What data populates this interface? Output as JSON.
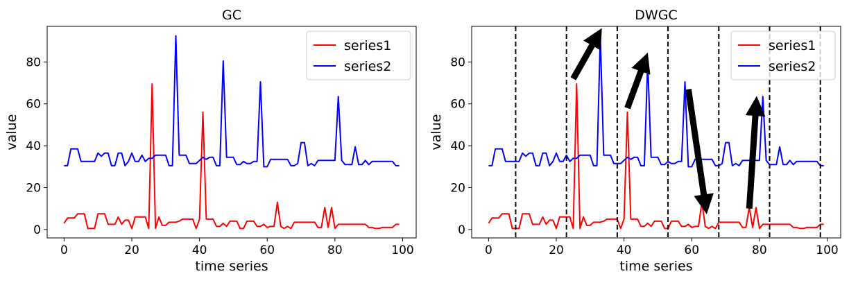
{
  "chart_data": [
    {
      "type": "line",
      "title": "GC",
      "xlabel": "time series",
      "ylabel": "value",
      "xlim": [
        -5,
        104
      ],
      "ylim": [
        -4,
        97
      ],
      "xticks": [
        0,
        20,
        40,
        60,
        80,
        100
      ],
      "yticks": [
        0,
        20,
        40,
        60,
        80
      ],
      "legend": "top-right",
      "series": [
        {
          "name": "series1",
          "color": "#ff0000",
          "x": [
            0,
            1,
            2,
            3,
            4,
            5,
            6,
            7,
            8,
            9,
            10,
            11,
            12,
            13,
            14,
            15,
            16,
            17,
            18,
            19,
            20,
            21,
            22,
            23,
            24,
            25,
            26,
            27,
            28,
            29,
            30,
            31,
            32,
            33,
            34,
            35,
            36,
            37,
            38,
            39,
            40,
            41,
            42,
            43,
            44,
            45,
            46,
            47,
            48,
            49,
            50,
            51,
            52,
            53,
            54,
            55,
            56,
            57,
            58,
            59,
            60,
            61,
            62,
            63,
            64,
            65,
            66,
            67,
            68,
            69,
            70,
            71,
            72,
            73,
            74,
            75,
            76,
            77,
            78,
            79,
            80,
            81,
            82,
            83,
            84,
            85,
            86,
            87,
            88,
            89,
            90,
            91,
            92,
            93,
            94,
            95,
            96,
            97,
            98,
            99
          ],
          "values": [
            3,
            5.5,
            5.5,
            5.5,
            7.5,
            7.5,
            7.5,
            0.5,
            0.5,
            0.5,
            7.5,
            7.5,
            7.5,
            2.5,
            2.5,
            2.5,
            6,
            2.5,
            4.5,
            4.5,
            0.5,
            6,
            6,
            6,
            6,
            0.5,
            69.5,
            0.5,
            6,
            2,
            2,
            3.5,
            3.5,
            3.5,
            4,
            5,
            5,
            5,
            5,
            0.5,
            5,
            56,
            5,
            5,
            5,
            1.5,
            1.5,
            3,
            1.5,
            4,
            4,
            4,
            0.5,
            0.5,
            4,
            4,
            4,
            1.5,
            1.5,
            2.5,
            1,
            1.5,
            1.5,
            13,
            1.5,
            0.5,
            1.5,
            0.5,
            3.5,
            3.5,
            3.5,
            3.5,
            3.5,
            3.5,
            3.5,
            1,
            1,
            10.5,
            1,
            10.5,
            0.5,
            2.5,
            2.5,
            2.5,
            2.5,
            2.5,
            2.5,
            2.5,
            2.5,
            2.5,
            1,
            1,
            0.5,
            0.5,
            1,
            1,
            1,
            1,
            2.5,
            2.5
          ]
        },
        {
          "name": "series2",
          "color": "#0000ff",
          "x": [
            0,
            1,
            2,
            3,
            4,
            5,
            6,
            7,
            8,
            9,
            10,
            11,
            12,
            13,
            14,
            15,
            16,
            17,
            18,
            19,
            20,
            21,
            22,
            23,
            24,
            25,
            26,
            27,
            28,
            29,
            30,
            31,
            32,
            33,
            34,
            35,
            36,
            37,
            38,
            39,
            40,
            41,
            42,
            43,
            44,
            45,
            46,
            47,
            48,
            49,
            50,
            51,
            52,
            53,
            54,
            55,
            56,
            57,
            58,
            59,
            60,
            61,
            62,
            63,
            64,
            65,
            66,
            67,
            68,
            69,
            70,
            71,
            72,
            73,
            74,
            75,
            76,
            77,
            78,
            79,
            80,
            81,
            82,
            83,
            84,
            85,
            86,
            87,
            88,
            89,
            90,
            91,
            92,
            93,
            94,
            95,
            96,
            97,
            98,
            99
          ],
          "values": [
            30.5,
            30.5,
            38.5,
            38.5,
            38.5,
            32.5,
            32.5,
            32.5,
            32.5,
            32.5,
            36.5,
            35,
            36.5,
            36.5,
            30.5,
            30.5,
            36.5,
            36.5,
            30.5,
            32.5,
            36.5,
            32.5,
            32.5,
            35.5,
            32.5,
            34,
            34,
            35.5,
            35.5,
            35.5,
            35.5,
            30.5,
            30.5,
            92.5,
            35.5,
            35.5,
            35.5,
            31.5,
            31.5,
            31.5,
            33,
            34.5,
            33.5,
            34.5,
            34.5,
            30.5,
            30.5,
            80.5,
            34.5,
            34.5,
            34.5,
            31,
            31,
            32.5,
            31.5,
            31.5,
            32.5,
            32.5,
            70.5,
            30,
            30,
            33.5,
            33.5,
            33.5,
            33.5,
            33.5,
            33.5,
            30.5,
            30.5,
            31.5,
            41.5,
            41.5,
            30.5,
            31.5,
            30.5,
            33,
            33,
            33,
            33,
            33,
            33,
            63.5,
            33,
            31,
            31,
            31,
            39.5,
            31,
            31,
            33,
            31,
            32.5,
            32.5,
            32.5,
            32.5,
            32.5,
            32.5,
            32.5,
            30.5,
            30.5
          ]
        }
      ]
    },
    {
      "type": "line",
      "title": "DWGC",
      "xlabel": "time series",
      "ylabel": "value",
      "xlim": [
        -5,
        104
      ],
      "ylim": [
        -4,
        97
      ],
      "xticks": [
        0,
        20,
        40,
        60,
        80,
        100
      ],
      "yticks": [
        0,
        20,
        40,
        60,
        80
      ],
      "legend": "top-right",
      "vertical_dashed_lines_x": [
        8,
        23,
        38,
        53,
        68,
        83,
        98
      ],
      "arrows": [
        {
          "from": [
            25,
            72
          ],
          "to": [
            32,
            92
          ]
        },
        {
          "from": [
            41,
            58
          ],
          "to": [
            46,
            80
          ]
        },
        {
          "from": [
            59,
            67
          ],
          "to": [
            64,
            12
          ]
        },
        {
          "from": [
            77,
            10
          ],
          "to": [
            79,
            59
          ]
        }
      ],
      "series": [
        {
          "name": "series1",
          "color": "#ff0000",
          "x": [
            0,
            1,
            2,
            3,
            4,
            5,
            6,
            7,
            8,
            9,
            10,
            11,
            12,
            13,
            14,
            15,
            16,
            17,
            18,
            19,
            20,
            21,
            22,
            23,
            24,
            25,
            26,
            27,
            28,
            29,
            30,
            31,
            32,
            33,
            34,
            35,
            36,
            37,
            38,
            39,
            40,
            41,
            42,
            43,
            44,
            45,
            46,
            47,
            48,
            49,
            50,
            51,
            52,
            53,
            54,
            55,
            56,
            57,
            58,
            59,
            60,
            61,
            62,
            63,
            64,
            65,
            66,
            67,
            68,
            69,
            70,
            71,
            72,
            73,
            74,
            75,
            76,
            77,
            78,
            79,
            80,
            81,
            82,
            83,
            84,
            85,
            86,
            87,
            88,
            89,
            90,
            91,
            92,
            93,
            94,
            95,
            96,
            97,
            98,
            99
          ],
          "values": [
            3,
            5.5,
            5.5,
            5.5,
            7.5,
            7.5,
            7.5,
            0.5,
            0.5,
            0.5,
            7.5,
            7.5,
            7.5,
            2.5,
            2.5,
            2.5,
            6,
            2.5,
            4.5,
            4.5,
            0.5,
            6,
            6,
            6,
            6,
            0.5,
            69.5,
            0.5,
            6,
            2,
            2,
            3.5,
            3.5,
            3.5,
            4,
            5,
            5,
            5,
            5,
            0.5,
            5,
            56,
            5,
            5,
            5,
            1.5,
            1.5,
            3,
            1.5,
            4,
            4,
            4,
            0.5,
            0.5,
            4,
            4,
            4,
            1.5,
            1.5,
            2.5,
            1,
            1.5,
            1.5,
            13,
            1.5,
            0.5,
            1.5,
            0.5,
            3.5,
            3.5,
            3.5,
            3.5,
            3.5,
            3.5,
            3.5,
            1,
            1,
            10.5,
            1,
            10.5,
            0.5,
            2.5,
            2.5,
            2.5,
            2.5,
            2.5,
            2.5,
            2.5,
            2.5,
            2.5,
            1,
            1,
            0.5,
            0.5,
            1,
            1,
            1,
            1,
            2.5,
            2.5
          ]
        },
        {
          "name": "series2",
          "color": "#0000ff",
          "x": [
            0,
            1,
            2,
            3,
            4,
            5,
            6,
            7,
            8,
            9,
            10,
            11,
            12,
            13,
            14,
            15,
            16,
            17,
            18,
            19,
            20,
            21,
            22,
            23,
            24,
            25,
            26,
            27,
            28,
            29,
            30,
            31,
            32,
            33,
            34,
            35,
            36,
            37,
            38,
            39,
            40,
            41,
            42,
            43,
            44,
            45,
            46,
            47,
            48,
            49,
            50,
            51,
            52,
            53,
            54,
            55,
            56,
            57,
            58,
            59,
            60,
            61,
            62,
            63,
            64,
            65,
            66,
            67,
            68,
            69,
            70,
            71,
            72,
            73,
            74,
            75,
            76,
            77,
            78,
            79,
            80,
            81,
            82,
            83,
            84,
            85,
            86,
            87,
            88,
            89,
            90,
            91,
            92,
            93,
            94,
            95,
            96,
            97,
            98,
            99
          ],
          "values": [
            30.5,
            30.5,
            38.5,
            38.5,
            38.5,
            32.5,
            32.5,
            32.5,
            32.5,
            32.5,
            36.5,
            35,
            36.5,
            36.5,
            30.5,
            30.5,
            36.5,
            36.5,
            30.5,
            32.5,
            36.5,
            32.5,
            32.5,
            35.5,
            32.5,
            34,
            34,
            35.5,
            35.5,
            35.5,
            35.5,
            30.5,
            30.5,
            92.5,
            35.5,
            35.5,
            35.5,
            31.5,
            31.5,
            31.5,
            33,
            34.5,
            33.5,
            34.5,
            34.5,
            30.5,
            30.5,
            80.5,
            34.5,
            34.5,
            34.5,
            31,
            31,
            32.5,
            31.5,
            31.5,
            32.5,
            32.5,
            70.5,
            30,
            30,
            33.5,
            33.5,
            33.5,
            33.5,
            33.5,
            33.5,
            30.5,
            30.5,
            31.5,
            41.5,
            41.5,
            30.5,
            31.5,
            30.5,
            33,
            33,
            33,
            33,
            33,
            33,
            63.5,
            33,
            31,
            31,
            31,
            39.5,
            31,
            31,
            33,
            31,
            32.5,
            32.5,
            32.5,
            32.5,
            32.5,
            32.5,
            32.5,
            30.5,
            30.5
          ]
        }
      ]
    }
  ]
}
